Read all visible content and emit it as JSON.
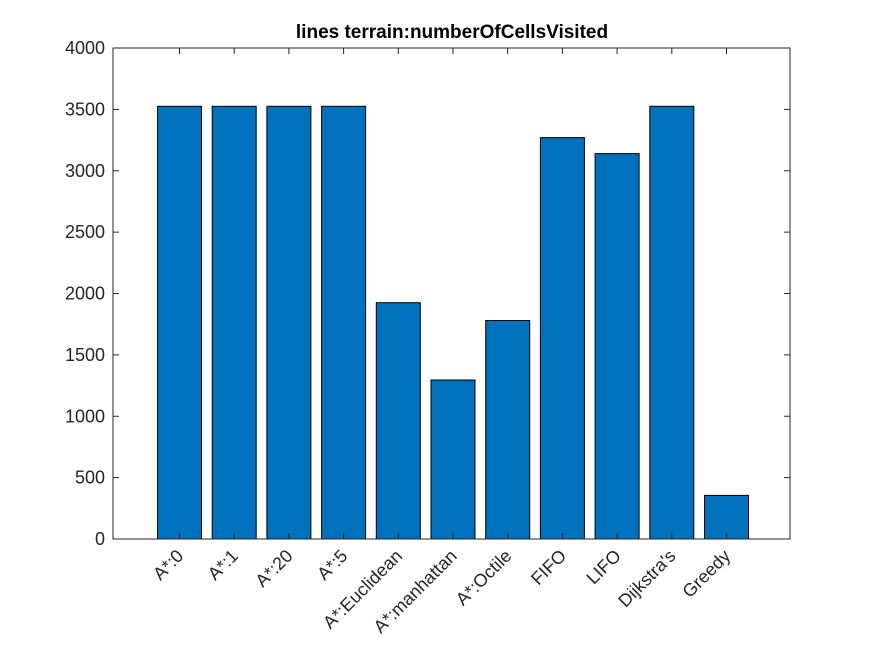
{
  "chart_data": {
    "type": "bar",
    "title": "lines terrain:numberOfCellsVisited",
    "xlabel": "",
    "ylabel": "",
    "categories": [
      "A*:0",
      "A*:1",
      "A*:20",
      "A*:5",
      "A*:Euclidean",
      "A*:manhattan",
      "A*:Octile",
      "FIFO",
      "LIFO",
      "Dijkstra's",
      "Greedy"
    ],
    "values": [
      3525,
      3525,
      3525,
      3525,
      1925,
      1295,
      1780,
      3270,
      3140,
      3525,
      355
    ],
    "ylim": [
      0,
      4000
    ],
    "yticks": [
      0,
      500,
      1000,
      1500,
      2000,
      2500,
      3000,
      3500,
      4000
    ],
    "grid": false,
    "legend": "none",
    "bar_color": "#0072BD",
    "edge_color": "#000000",
    "axis_color": "#262626"
  }
}
